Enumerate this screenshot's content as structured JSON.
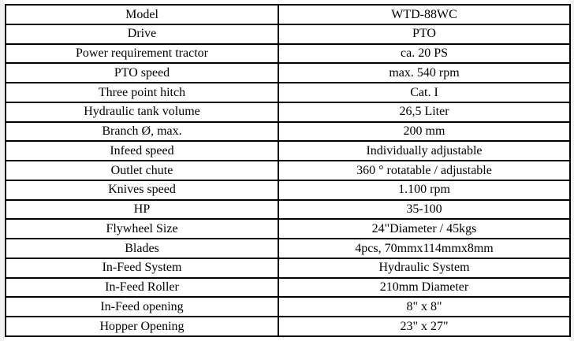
{
  "table": {
    "rows": [
      {
        "label": "Model",
        "value": "WTD-88WC"
      },
      {
        "label": "Drive",
        "value": "PTO"
      },
      {
        "label": "Power requirement tractor",
        "value": "ca. 20 PS"
      },
      {
        "label": "PTO speed",
        "value": "max. 540 rpm"
      },
      {
        "label": "Three point hitch",
        "value": "Cat. I"
      },
      {
        "label": "Hydraulic tank volume",
        "value": "26,5 Liter"
      },
      {
        "label": "Branch Ø, max.",
        "value": "200 mm"
      },
      {
        "label": "Infeed speed",
        "value": "Individually adjustable"
      },
      {
        "label": "Outlet chute",
        "value": "360 ° rotatable / adjustable"
      },
      {
        "label": "Knives speed",
        "value": "1.100 rpm"
      },
      {
        "label": "HP",
        "value": "35-100"
      },
      {
        "label": "Flywheel Size",
        "value": "24\"Diameter / 45kgs"
      },
      {
        "label": "Blades",
        "value": "4pcs, 70mmx114mmx8mm"
      },
      {
        "label": "In-Feed System",
        "value": "Hydraulic System"
      },
      {
        "label": "In-Feed Roller",
        "value": "210mm Diameter"
      },
      {
        "label": "In-Feed opening",
        "value": "8\" x 8\""
      },
      {
        "label": "Hopper Opening",
        "value": "23\" x 27\""
      }
    ],
    "border_color": "#000000",
    "text_color": "#000000",
    "background_color": "#ffffff"
  }
}
